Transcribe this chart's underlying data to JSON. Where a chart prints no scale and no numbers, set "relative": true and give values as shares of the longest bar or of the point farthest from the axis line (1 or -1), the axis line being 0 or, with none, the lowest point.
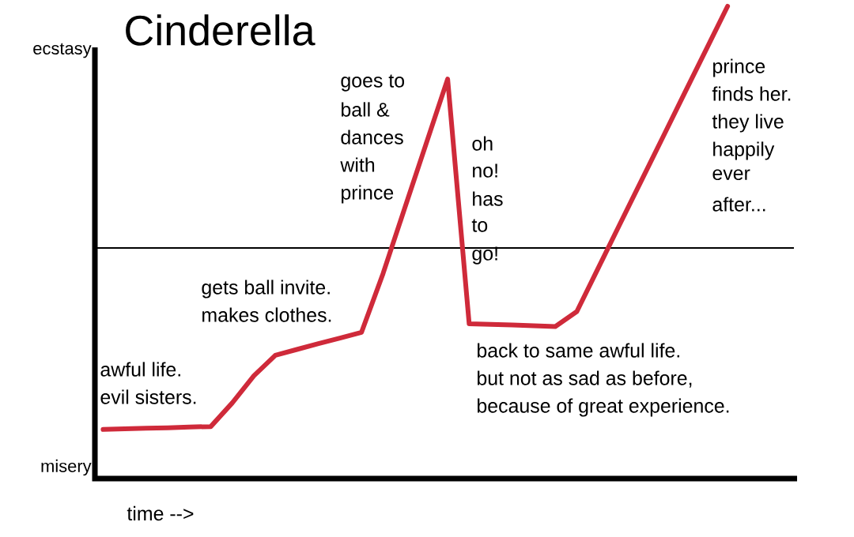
{
  "chart_data": {
    "type": "line",
    "title": "Cinderella",
    "xlabel": "time -->",
    "relative": true,
    "categories": [
      null,
      null,
      null,
      null,
      null,
      null,
      null,
      null,
      null,
      null,
      null,
      null,
      null,
      null,
      null,
      null,
      null,
      null,
      null,
      null,
      null,
      null,
      null,
      null,
      null,
      null,
      null,
      null,
      null,
      null
    ],
    "series": [
      {
        "color": "#cf2a3a",
        "values": [
          -0.751,
          -0.748,
          -0.746,
          -0.744,
          -0.741,
          -0.739,
          -0.641,
          -0.529,
          -0.444,
          -0.42,
          -0.396,
          -0.373,
          -0.349,
          -0.106,
          0.163,
          0.431,
          0.699,
          -0.314,
          -0.316,
          -0.319,
          -0.322,
          -0.325,
          -0.263,
          -0.082,
          0.099,
          0.279,
          0.459,
          0.64,
          0.82,
          1.0
        ]
      }
    ],
    "marker": "none",
    "line_style": "solid",
    "annotations": [
      "ecstasy",
      "misery",
      "awful life.",
      "evil sisters.",
      "gets ball invite.",
      "makes clothes.",
      "goes to",
      "ball &",
      "dances",
      "with",
      "prince",
      "oh",
      "no!",
      "has",
      "to",
      "go!",
      "back to same awful life.",
      "but not as sad as before,",
      "because of great experience.",
      "prince",
      "finds her.",
      "they live",
      "happily",
      "ever",
      "after..."
    ]
  }
}
